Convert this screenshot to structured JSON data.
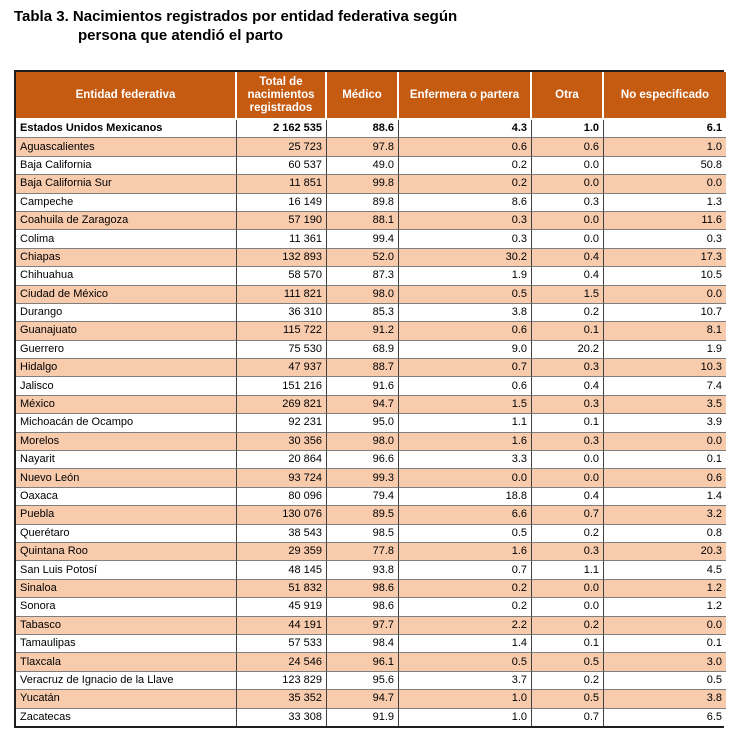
{
  "title": {
    "line1": "Tabla 3. Nacimientos registrados por entidad federativa según",
    "line2": "persona que atendió el parto"
  },
  "colors": {
    "header_bg": "#C55A11",
    "header_text": "#FFFFFF",
    "alt_row_bg": "#F8CBAD",
    "row_bg": "#FFFFFF",
    "outer_border": "#1F1F1F",
    "grid_vertical": "#404040",
    "grid_horizontal": "#7F7F7F",
    "title_text": "#000000"
  },
  "table": {
    "columns": [
      "Entidad federativa",
      "Total de nacimientos registrados",
      "Médico",
      "Enfermera o partera",
      "Otra",
      "No especificado"
    ],
    "rows": [
      [
        "Estados Unidos Mexicanos",
        "2 162 535",
        "88.6",
        "4.3",
        "1.0",
        "6.1"
      ],
      [
        "Aguascalientes",
        "25 723",
        "97.8",
        "0.6",
        "0.6",
        "1.0"
      ],
      [
        "Baja California",
        "60 537",
        "49.0",
        "0.2",
        "0.0",
        "50.8"
      ],
      [
        "Baja California Sur",
        "11 851",
        "99.8",
        "0.2",
        "0.0",
        "0.0"
      ],
      [
        "Campeche",
        "16 149",
        "89.8",
        "8.6",
        "0.3",
        "1.3"
      ],
      [
        "Coahuila de Zaragoza",
        "57 190",
        "88.1",
        "0.3",
        "0.0",
        "11.6"
      ],
      [
        "Colima",
        "11 361",
        "99.4",
        "0.3",
        "0.0",
        "0.3"
      ],
      [
        "Chiapas",
        "132 893",
        "52.0",
        "30.2",
        "0.4",
        "17.3"
      ],
      [
        "Chihuahua",
        "58 570",
        "87.3",
        "1.9",
        "0.4",
        "10.5"
      ],
      [
        "Ciudad de México",
        "111 821",
        "98.0",
        "0.5",
        "1.5",
        "0.0"
      ],
      [
        "Durango",
        "36 310",
        "85.3",
        "3.8",
        "0.2",
        "10.7"
      ],
      [
        "Guanajuato",
        "115 722",
        "91.2",
        "0.6",
        "0.1",
        "8.1"
      ],
      [
        "Guerrero",
        "75 530",
        "68.9",
        "9.0",
        "20.2",
        "1.9"
      ],
      [
        "Hidalgo",
        "47 937",
        "88.7",
        "0.7",
        "0.3",
        "10.3"
      ],
      [
        "Jalisco",
        "151 216",
        "91.6",
        "0.6",
        "0.4",
        "7.4"
      ],
      [
        "México",
        "269 821",
        "94.7",
        "1.5",
        "0.3",
        "3.5"
      ],
      [
        "Michoacán de Ocampo",
        "92 231",
        "95.0",
        "1.1",
        "0.1",
        "3.9"
      ],
      [
        "Morelos",
        "30 356",
        "98.0",
        "1.6",
        "0.3",
        "0.0"
      ],
      [
        "Nayarit",
        "20 864",
        "96.6",
        "3.3",
        "0.0",
        "0.1"
      ],
      [
        "Nuevo León",
        "93 724",
        "99.3",
        "0.0",
        "0.0",
        "0.6"
      ],
      [
        "Oaxaca",
        "80 096",
        "79.4",
        "18.8",
        "0.4",
        "1.4"
      ],
      [
        "Puebla",
        "130 076",
        "89.5",
        "6.6",
        "0.7",
        "3.2"
      ],
      [
        "Querétaro",
        "38 543",
        "98.5",
        "0.5",
        "0.2",
        "0.8"
      ],
      [
        "Quintana Roo",
        "29 359",
        "77.8",
        "1.6",
        "0.3",
        "20.3"
      ],
      [
        "San Luis Potosí",
        "48 145",
        "93.8",
        "0.7",
        "1.1",
        "4.5"
      ],
      [
        "Sinaloa",
        "51 832",
        "98.6",
        "0.2",
        "0.0",
        "1.2"
      ],
      [
        "Sonora",
        "45 919",
        "98.6",
        "0.2",
        "0.0",
        "1.2"
      ],
      [
        "Tabasco",
        "44 191",
        "97.7",
        "2.2",
        "0.2",
        "0.0"
      ],
      [
        "Tamaulipas",
        "57 533",
        "98.4",
        "1.4",
        "0.1",
        "0.1"
      ],
      [
        "Tlaxcala",
        "24 546",
        "96.1",
        "0.5",
        "0.5",
        "3.0"
      ],
      [
        "Veracruz de Ignacio de la Llave",
        "123 829",
        "95.6",
        "3.7",
        "0.2",
        "0.5"
      ],
      [
        "Yucatán",
        "35 352",
        "94.7",
        "1.0",
        "0.5",
        "3.8"
      ],
      [
        "Zacatecas",
        "33 308",
        "91.9",
        "1.0",
        "0.7",
        "6.5"
      ]
    ]
  }
}
